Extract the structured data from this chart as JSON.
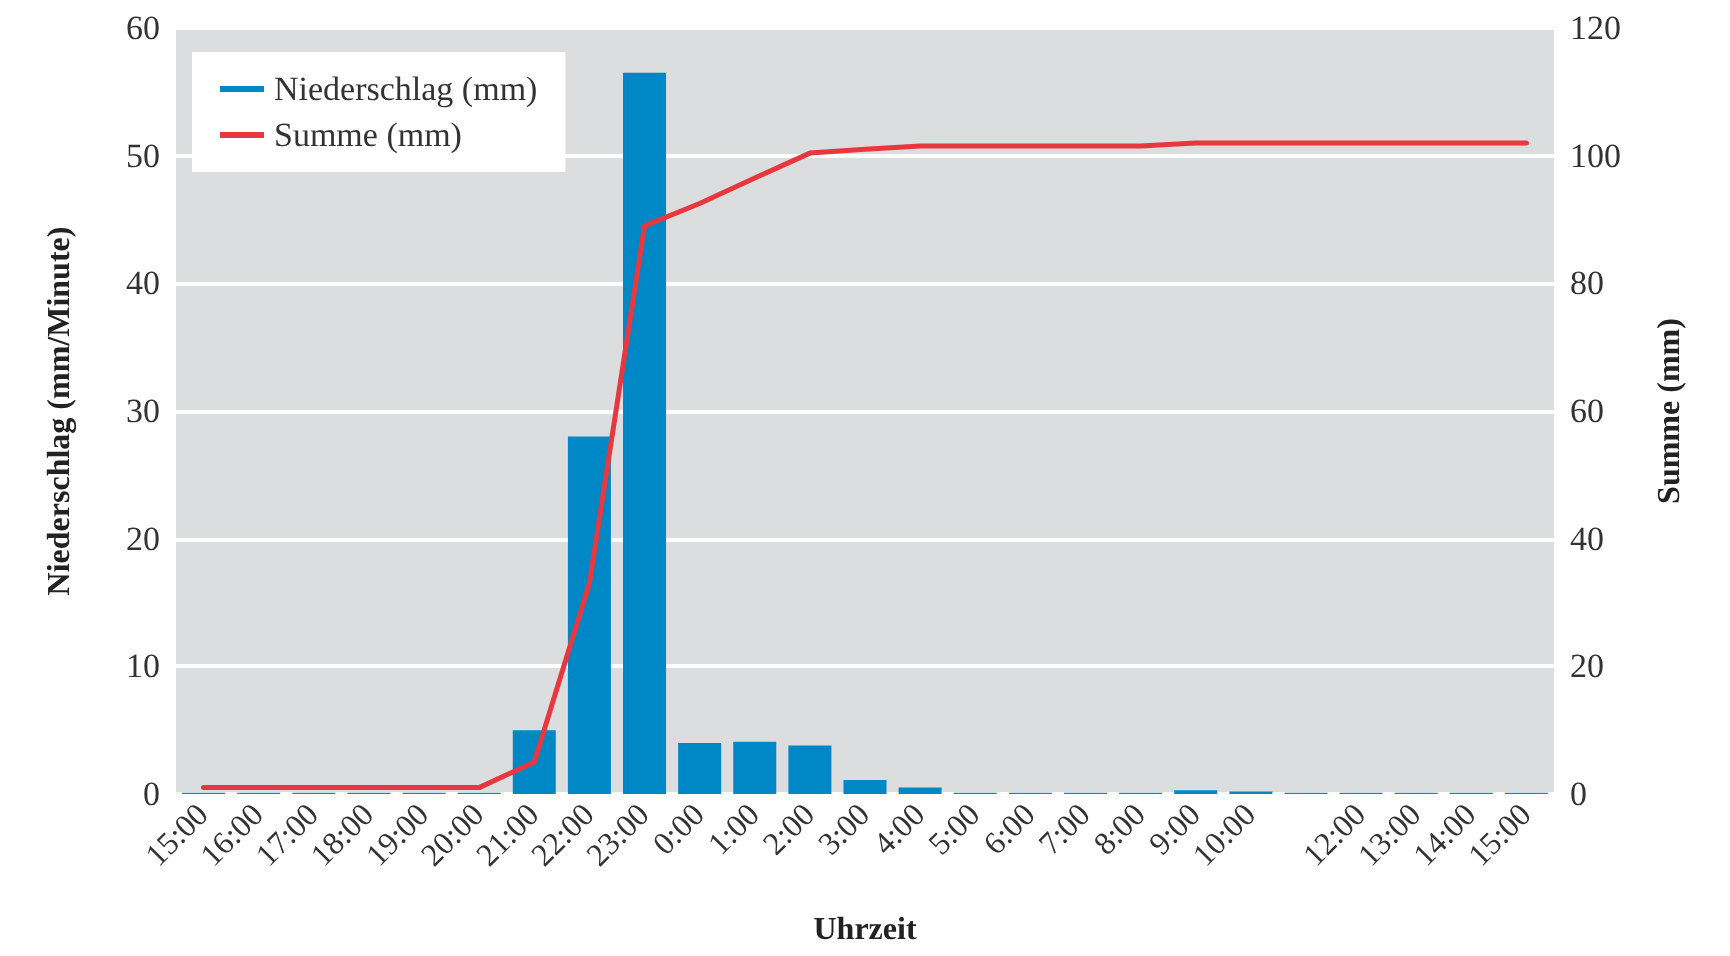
{
  "chart_data": {
    "type": "bar",
    "xlabel": "Uhrzeit",
    "ylabel": "Niederschlag (mm/Minute)",
    "y2label": "Summe (mm)",
    "categories": [
      "15:00",
      "16:00",
      "17:00",
      "18:00",
      "19:00",
      "20:00",
      "21:00",
      "22:00",
      "23:00",
      "0:00",
      "1:00",
      "2:00",
      "3:00",
      "4:00",
      "5:00",
      "6:00",
      "7:00",
      "8:00",
      "9:00",
      "10:00",
      null,
      "12:00",
      "13:00",
      "14:00",
      "15:00"
    ],
    "series": [
      {
        "name": "Niederschlag (mm)",
        "color": "#0087c5",
        "values": [
          0.1,
          0.1,
          0.1,
          0.1,
          0.1,
          0.1,
          5,
          28,
          56.5,
          4,
          4.1,
          3.8,
          1.1,
          0.5,
          0.1,
          0.1,
          0.1,
          0.1,
          0.3,
          0.2,
          0.1,
          0.1,
          0.1,
          0.1,
          0.1
        ]
      },
      {
        "name": "Summe (mm)",
        "type": "line",
        "axis": "y2",
        "color": "#e8373f",
        "values": [
          1,
          1,
          1,
          1,
          1,
          1,
          5,
          33,
          89,
          92.5,
          96.5,
          100.4,
          101,
          101.5,
          101.5,
          101.5,
          101.5,
          101.5,
          102,
          102,
          102,
          102,
          102,
          102,
          102
        ]
      }
    ],
    "ylim": [
      0,
      60
    ],
    "yticks": [
      0,
      10,
      20,
      30,
      40,
      50,
      60
    ],
    "y2lim": [
      0,
      120
    ],
    "y2ticks": [
      0,
      20,
      40,
      60,
      80,
      100,
      120
    ],
    "grid": "y",
    "legend": "top left",
    "marker": "none"
  }
}
